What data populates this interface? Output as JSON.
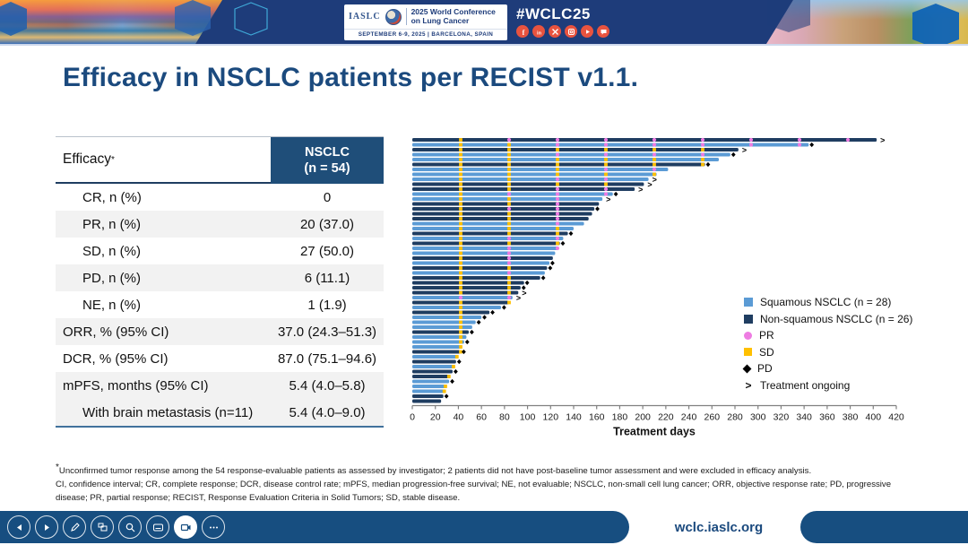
{
  "header": {
    "iaslc": "IASLC",
    "conference_line1": "2025 World Conference",
    "conference_line2": "on Lung Cancer",
    "date_location": "SEPTEMBER 6-9, 2025  |  BARCELONA, SPAIN",
    "hashtag": "#WCLC25",
    "social_icons": [
      "facebook-icon",
      "linkedin-icon",
      "x-icon",
      "instagram-icon",
      "youtube-icon",
      "share-icon"
    ],
    "accent_navy": "#1e3c7a",
    "social_red": "#e8533f"
  },
  "slide": {
    "title": "Efficacy in NSCLC patients per RECIST v1.1.",
    "table": {
      "col1_header": "Efficacy",
      "col1_header_sup": "*",
      "col2_header_line1": "NSCLC",
      "col2_header_line2": "(n = 54)",
      "header_bg": "#1f4e79",
      "rows": [
        {
          "label": "CR, n (%)",
          "value": "0",
          "indent": true,
          "alt": false
        },
        {
          "label": "PR, n (%)",
          "value": "20 (37.0)",
          "indent": true,
          "alt": true
        },
        {
          "label": "SD, n (%)",
          "value": "27 (50.0)",
          "indent": true,
          "alt": false
        },
        {
          "label": "PD, n (%)",
          "value": "6 (11.1)",
          "indent": true,
          "alt": true
        },
        {
          "label": "NE, n (%)",
          "value": "1 (1.9)",
          "indent": true,
          "alt": false
        },
        {
          "label": "ORR, % (95% CI)",
          "value": "37.0 (24.3–51.3)",
          "indent": false,
          "alt": true
        },
        {
          "label": "DCR, % (95% CI)",
          "value": "87.0 (75.1–94.6)",
          "indent": false,
          "alt": false
        },
        {
          "label": "mPFS, months (95% CI)",
          "value": "5.4 (4.0–5.8)",
          "indent": false,
          "alt": true
        },
        {
          "label": "With brain metastasis (n=11)",
          "value": "5.4 (4.0–9.0)",
          "indent": true,
          "alt": true
        }
      ]
    },
    "footnote_star": "*",
    "footnote_line1": "Unconfirmed tumor response among the 54 response-evaluable patients as assessed by investigator; 2 patients did not have post-baseline tumor assessment and were excluded in efficacy analysis.",
    "footnote_line2": "CI, confidence interval; CR, complete response; DCR, disease control rate; mPFS, median progression-free survival; NE, not evaluable; NSCLC, non-small cell lung cancer; ORR, objective response rate; PD, progressive disease; PR, partial response; RECIST, Response Evaluation Criteria in Solid Tumors; SD, stable disease."
  },
  "chart_data": {
    "type": "bar",
    "subtype": "swimmer-plot-horizontal",
    "xlabel": "Treatment days",
    "xlim": [
      0,
      420
    ],
    "x_ticks": [
      0,
      20,
      40,
      60,
      80,
      100,
      120,
      140,
      160,
      180,
      200,
      220,
      240,
      260,
      280,
      300,
      320,
      340,
      360,
      380,
      400,
      420
    ],
    "assessment_interval_days": 42,
    "legend_position": "inside-right",
    "legend": [
      {
        "swatch": "sq",
        "label": "Squamous NSCLC (n = 28)"
      },
      {
        "swatch": "nsq",
        "label": "Non-squamous NSCLC (n = 26)"
      },
      {
        "swatch": "pr",
        "label": "PR"
      },
      {
        "swatch": "sd",
        "label": "SD"
      },
      {
        "swatch": "pd",
        "label": "PD"
      },
      {
        "swatch": "gt",
        "label": "Treatment ongoing",
        "symbol": ">"
      }
    ],
    "colors": {
      "squamous": "#5b9bd5",
      "non_squamous": "#1f3d61",
      "pr_marker": "#ee7ce2",
      "sd_marker": "#ffc000",
      "pd_marker": "#000000",
      "axis": "#808080"
    },
    "bars_note": "g: sq=squamous / nsq=non-squamous; d: treatment days (approx.); pr: day of first PR assessment (0 = no PR, SD at all assessments); e: end status pd=PD diamond, on=treatment ongoing",
    "bars": [
      {
        "g": "nsq",
        "d": 403,
        "pr": 84,
        "e": "on"
      },
      {
        "g": "sq",
        "d": 344,
        "pr": 126,
        "e": "pd"
      },
      {
        "g": "nsq",
        "d": 283,
        "pr": 0,
        "e": "on"
      },
      {
        "g": "sq",
        "d": 276,
        "pr": 126,
        "e": "pd"
      },
      {
        "g": "sq",
        "d": 266,
        "pr": 0,
        "e": ""
      },
      {
        "g": "nsq",
        "d": 254,
        "pr": 0,
        "e": "pd"
      },
      {
        "g": "sq",
        "d": 222,
        "pr": 168,
        "e": ""
      },
      {
        "g": "sq",
        "d": 212,
        "pr": 0,
        "e": ""
      },
      {
        "g": "sq",
        "d": 205,
        "pr": 126,
        "e": "on"
      },
      {
        "g": "nsq",
        "d": 201,
        "pr": 0,
        "e": "on"
      },
      {
        "g": "nsq",
        "d": 193,
        "pr": 126,
        "e": "on"
      },
      {
        "g": "sq",
        "d": 174,
        "pr": 84,
        "e": "pd"
      },
      {
        "g": "sq",
        "d": 165,
        "pr": 126,
        "e": "on"
      },
      {
        "g": "nsq",
        "d": 162,
        "pr": 126,
        "e": ""
      },
      {
        "g": "nsq",
        "d": 158,
        "pr": 84,
        "e": "pd"
      },
      {
        "g": "nsq",
        "d": 156,
        "pr": 126,
        "e": ""
      },
      {
        "g": "nsq",
        "d": 153,
        "pr": 126,
        "e": ""
      },
      {
        "g": "sq",
        "d": 149,
        "pr": 126,
        "e": ""
      },
      {
        "g": "sq",
        "d": 140,
        "pr": 0,
        "e": ""
      },
      {
        "g": "nsq",
        "d": 135,
        "pr": 0,
        "e": "pd"
      },
      {
        "g": "sq",
        "d": 131,
        "pr": 84,
        "e": ""
      },
      {
        "g": "nsq",
        "d": 128,
        "pr": 0,
        "e": "pd"
      },
      {
        "g": "sq",
        "d": 126,
        "pr": 84,
        "e": ""
      },
      {
        "g": "sq",
        "d": 124,
        "pr": 84,
        "e": ""
      },
      {
        "g": "nsq",
        "d": 122,
        "pr": 84,
        "e": ""
      },
      {
        "g": "sq",
        "d": 119,
        "pr": 84,
        "e": "pd"
      },
      {
        "g": "nsq",
        "d": 117,
        "pr": 0,
        "e": "pd"
      },
      {
        "g": "sq",
        "d": 115,
        "pr": 84,
        "e": ""
      },
      {
        "g": "nsq",
        "d": 111,
        "pr": 0,
        "e": "pd"
      },
      {
        "g": "nsq",
        "d": 97,
        "pr": 0,
        "e": "pd"
      },
      {
        "g": "nsq",
        "d": 94,
        "pr": 0,
        "e": "pd"
      },
      {
        "g": "nsq",
        "d": 92,
        "pr": 0,
        "e": "on"
      },
      {
        "g": "sq",
        "d": 87,
        "pr": 42,
        "e": "on"
      },
      {
        "g": "nsq",
        "d": 84,
        "pr": 0,
        "e": ""
      },
      {
        "g": "sq",
        "d": 77,
        "pr": 0,
        "e": "pd"
      },
      {
        "g": "nsq",
        "d": 67,
        "pr": 0,
        "e": "pd"
      },
      {
        "g": "sq",
        "d": 60,
        "pr": 0,
        "e": "pd"
      },
      {
        "g": "sq",
        "d": 55,
        "pr": 0,
        "e": "pd"
      },
      {
        "g": "sq",
        "d": 52,
        "pr": 0,
        "e": ""
      },
      {
        "g": "nsq",
        "d": 49,
        "pr": 0,
        "e": "pd"
      },
      {
        "g": "sq",
        "d": 47,
        "pr": 0,
        "e": ""
      },
      {
        "g": "sq",
        "d": 45,
        "pr": 0,
        "e": "pd"
      },
      {
        "g": "sq",
        "d": 43,
        "pr": 0,
        "e": ""
      },
      {
        "g": "nsq",
        "d": 42,
        "pr": 0,
        "e": "pd"
      },
      {
        "g": "sq",
        "d": 40,
        "pr": 0,
        "e": ""
      },
      {
        "g": "nsq",
        "d": 38,
        "pr": 0,
        "e": "pd"
      },
      {
        "g": "sq",
        "d": 37,
        "pr": 0,
        "e": ""
      },
      {
        "g": "nsq",
        "d": 35,
        "pr": 0,
        "e": "pd"
      },
      {
        "g": "nsq",
        "d": 33,
        "pr": 0,
        "e": ""
      },
      {
        "g": "sq",
        "d": 32,
        "pr": 0,
        "e": "pd"
      },
      {
        "g": "sq",
        "d": 30,
        "pr": 0,
        "e": ""
      },
      {
        "g": "sq",
        "d": 29,
        "pr": 0,
        "e": ""
      },
      {
        "g": "nsq",
        "d": 27,
        "pr": 0,
        "e": "pd"
      },
      {
        "g": "nsq",
        "d": 25,
        "pr": 0,
        "e": ""
      }
    ]
  },
  "footer": {
    "url": "wclc.iaslc.org",
    "controls": [
      {
        "name": "previous",
        "active": false
      },
      {
        "name": "next",
        "active": false
      },
      {
        "name": "pen",
        "active": false
      },
      {
        "name": "see-all-slides",
        "active": false
      },
      {
        "name": "zoom",
        "active": false
      },
      {
        "name": "captions",
        "active": false
      },
      {
        "name": "camera",
        "active": true
      },
      {
        "name": "more",
        "active": false
      }
    ]
  }
}
